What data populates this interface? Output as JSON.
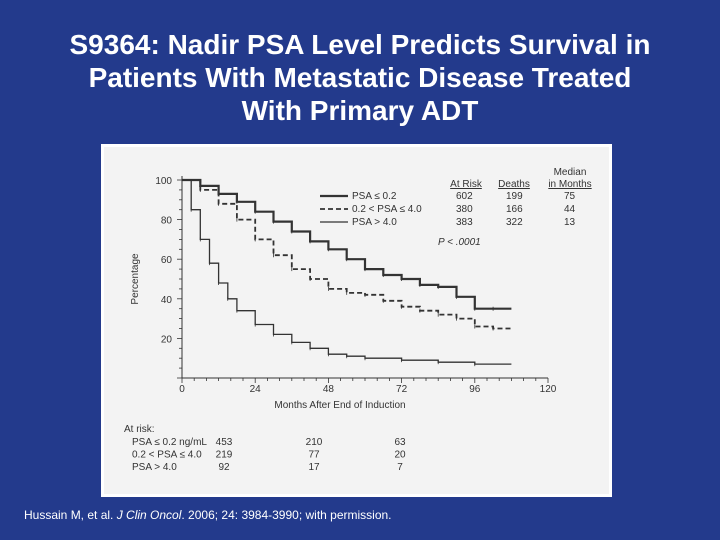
{
  "title_lines": [
    "S9364: Nadir PSA Level Predicts Survival in",
    "Patients With Metastatic Disease Treated",
    "With Primary ADT"
  ],
  "citation": {
    "prefix": "Hussain M, et al. ",
    "journal": "J Clin Oncol",
    "suffix": ". 2006; 24: 3984-3990; with permission."
  },
  "colors": {
    "background": "#233a8c",
    "panel": "#f3f3f3",
    "ink": "#333333"
  },
  "chart_data": {
    "type": "line",
    "title": "",
    "xlabel": "Months After End of Induction",
    "ylabel": "Percentage",
    "xlim": [
      0,
      120
    ],
    "ylim": [
      0,
      100
    ],
    "xticks": [
      0,
      24,
      48,
      72,
      96,
      120
    ],
    "yticks": [
      20,
      40,
      60,
      80,
      100
    ],
    "legend": {
      "headers": [
        "At Risk",
        "Deaths",
        "Median",
        "in Months"
      ],
      "rows": [
        {
          "label": "PSA ≤ 0.2",
          "at_risk": "602",
          "deaths": "199",
          "median": "75"
        },
        {
          "label": "0.2 < PSA ≤ 4.0",
          "at_risk": "380",
          "deaths": "166",
          "median": "44"
        },
        {
          "label": "PSA > 4.0",
          "at_risk": "383",
          "deaths": "322",
          "median": "13"
        }
      ],
      "pvalue": "P < .0001"
    },
    "series": [
      {
        "name": "PSA ≤ 0.2",
        "dash": "",
        "width": 2.2,
        "x": [
          0,
          6,
          12,
          18,
          24,
          30,
          36,
          42,
          48,
          54,
          60,
          66,
          72,
          78,
          84,
          90,
          96,
          102,
          108
        ],
        "y": [
          100,
          97,
          93,
          89,
          84,
          79,
          74,
          69,
          65,
          60,
          55,
          52,
          50,
          47,
          46,
          41,
          35,
          35,
          35
        ]
      },
      {
        "name": "0.2 < PSA ≤ 4.0",
        "dash": "5 3",
        "width": 1.8,
        "x": [
          0,
          6,
          12,
          18,
          24,
          30,
          36,
          42,
          48,
          54,
          60,
          66,
          72,
          78,
          84,
          90,
          96,
          102,
          108
        ],
        "y": [
          100,
          95,
          88,
          80,
          70,
          62,
          55,
          50,
          45,
          43,
          42,
          39,
          36,
          34,
          32,
          30,
          26,
          25,
          25
        ]
      },
      {
        "name": "PSA > 4.0",
        "dash": "",
        "width": 1.3,
        "x": [
          0,
          3,
          6,
          9,
          12,
          15,
          18,
          24,
          30,
          36,
          42,
          48,
          54,
          60,
          72,
          84,
          96,
          108
        ],
        "y": [
          100,
          85,
          70,
          58,
          48,
          40,
          34,
          27,
          22,
          18,
          15,
          12,
          11,
          10,
          9,
          8,
          7,
          7
        ]
      }
    ],
    "at_risk": {
      "title": "At risk:",
      "rows": [
        {
          "label": "PSA ≤ 0.2 ng/mL",
          "values": [
            "453",
            "210",
            "63"
          ]
        },
        {
          "label": "0.2 < PSA ≤ 4.0",
          "values": [
            "219",
            "77",
            "20"
          ]
        },
        {
          "label": "PSA > 4.0",
          "values": [
            "92",
            "17",
            "7"
          ]
        }
      ]
    }
  }
}
